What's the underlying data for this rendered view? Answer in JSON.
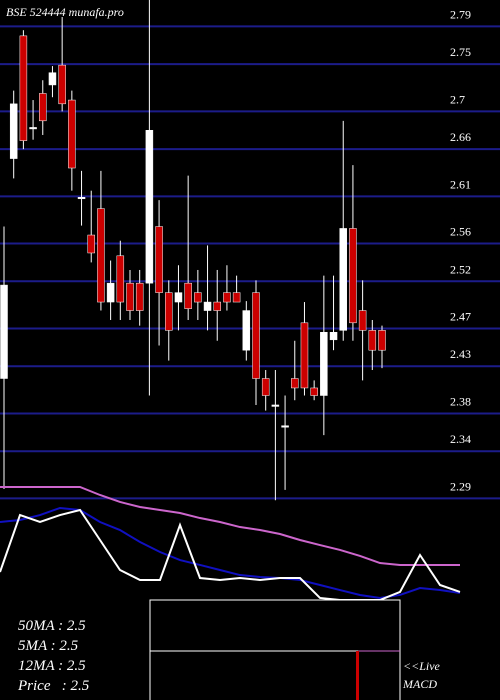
{
  "chart_data": [
    {
      "type": "candlestick",
      "title": "BSE 524444  munafa.pro",
      "categories": [
        null,
        null,
        null,
        null,
        null,
        null,
        null,
        null,
        null,
        null,
        null,
        null,
        null,
        null,
        null,
        null,
        null,
        null,
        null,
        null,
        null,
        null,
        null,
        null,
        null,
        null,
        null,
        null,
        null,
        null,
        null,
        null,
        null,
        null,
        null,
        null,
        null,
        null,
        null,
        null
      ],
      "open": [
        2.417,
        2.65,
        2.78,
        2.683,
        2.719,
        2.728,
        2.749,
        2.712,
        2.609,
        2.569,
        2.597,
        2.498,
        2.547,
        2.518,
        2.518,
        2.518,
        2.578,
        2.508,
        2.498,
        2.518,
        2.508,
        2.489,
        2.498,
        2.508,
        2.508,
        2.447,
        2.508,
        2.417,
        2.389,
        2.367,
        2.417,
        2.476,
        2.407,
        2.399,
        2.458,
        2.468,
        2.576,
        2.489,
        2.468,
        2.468
      ],
      "high": [
        2.578,
        2.722,
        2.786,
        2.712,
        2.733,
        2.748,
        2.8,
        2.722,
        2.637,
        2.616,
        2.637,
        2.542,
        2.563,
        2.532,
        2.532,
        2.818,
        2.606,
        2.521,
        2.537,
        2.632,
        2.532,
        2.558,
        2.532,
        2.537,
        2.526,
        2.499,
        2.521,
        2.426,
        2.426,
        2.399,
        2.457,
        2.498,
        2.415,
        2.526,
        2.526,
        2.69,
        2.643,
        2.521,
        2.479,
        2.473
      ],
      "low": [
        2.3,
        2.629,
        2.66,
        2.67,
        2.675,
        2.715,
        2.7,
        2.616,
        2.579,
        2.54,
        2.489,
        2.479,
        2.479,
        2.479,
        2.473,
        2.399,
        2.452,
        2.436,
        2.468,
        2.479,
        2.479,
        2.468,
        2.457,
        2.489,
        2.499,
        2.436,
        2.389,
        2.383,
        2.288,
        2.299,
        2.394,
        2.399,
        2.394,
        2.357,
        2.447,
        2.457,
        2.457,
        2.415,
        2.426,
        2.428
      ],
      "close": [
        2.516,
        2.708,
        2.669,
        2.683,
        2.69,
        2.741,
        2.708,
        2.64,
        2.609,
        2.55,
        2.498,
        2.518,
        2.498,
        2.489,
        2.489,
        2.68,
        2.508,
        2.468,
        2.508,
        2.491,
        2.498,
        2.498,
        2.489,
        2.498,
        2.498,
        2.489,
        2.417,
        2.399,
        2.389,
        2.367,
        2.407,
        2.407,
        2.399,
        2.466,
        2.466,
        2.576,
        2.476,
        2.468,
        2.447,
        2.447
      ],
      "up_color": "#ffffff",
      "down_color": "#cc0000",
      "ylim": [
        2.283,
        2.818
      ],
      "yticks": [
        2.79,
        2.75,
        2.7,
        2.66,
        2.61,
        2.56,
        2.52,
        2.47,
        2.43,
        2.38,
        2.34,
        2.29
      ],
      "grid": true,
      "grid_color": "#1c1c8a"
    },
    {
      "type": "line",
      "x": [
        0,
        2,
        4,
        6,
        8,
        10,
        12,
        14,
        16,
        18,
        20,
        22,
        24,
        26,
        28,
        30,
        32,
        34,
        36,
        38,
        40,
        42,
        44,
        46
      ],
      "xlim": [
        0,
        50
      ],
      "ylim": [
        0,
        100
      ],
      "series": [
        {
          "color": "#cc66cc",
          "values": [
            94.2,
            94.2,
            94.2,
            94.2,
            94.2,
            87.5,
            81.7,
            77.5,
            75,
            72.5,
            68.3,
            65,
            60.8,
            58.3,
            55,
            50,
            45.8,
            41.7,
            36.7,
            30.8,
            29.2,
            29.2,
            29.2,
            29.2
          ]
        },
        {
          "color": "#1010c0",
          "values": [
            65,
            66.7,
            70.8,
            76.7,
            75,
            65,
            58.3,
            48.3,
            40,
            33.3,
            29.2,
            25,
            20.8,
            19.2,
            18.3,
            16.7,
            12.5,
            8.3,
            4.2,
            1.7,
            4.2,
            10,
            8.3,
            5.8
          ]
        },
        {
          "color": "#ffffff",
          "values": [
            23.3,
            70.8,
            65,
            70.8,
            75,
            50,
            25,
            16.7,
            16.7,
            62.5,
            18.3,
            16.7,
            18.3,
            16.7,
            18.3,
            18.3,
            1.7,
            0,
            0,
            0,
            6.7,
            37.5,
            12.5,
            6.7
          ]
        }
      ]
    }
  ],
  "info": {
    "ma50": "50MA : 2.5",
    "ma5": "5MA : 2.5",
    "ma12": "12MA : 2.5",
    "price": "Price   : 2.5",
    "live": "<<Live",
    "macd": "MACD"
  }
}
